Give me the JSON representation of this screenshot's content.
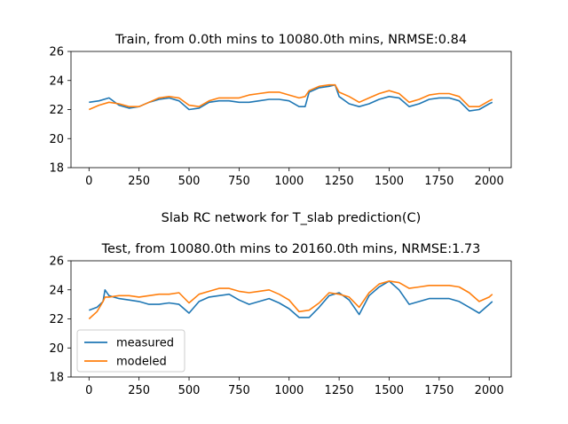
{
  "figure": {
    "suptitle": "Slab RC network for T_slab prediction(C)"
  },
  "colors": {
    "measured": "#1f77b4",
    "modeled": "#ff7f0e",
    "axes": "#000000",
    "background": "#ffffff"
  },
  "chart_data": [
    {
      "type": "line",
      "title": "Train, from 0.0th mins to 10080.0th mins, NRMSE:0.84",
      "xlabel": "",
      "ylabel": "",
      "xlim": [
        -90,
        2110
      ],
      "ylim": [
        18,
        26
      ],
      "xticks": [
        0,
        250,
        500,
        750,
        1000,
        1250,
        1500,
        1750,
        2000
      ],
      "yticks": [
        18,
        20,
        22,
        24,
        26
      ],
      "grid": false,
      "legend": null,
      "series": [
        {
          "name": "measured",
          "x": [
            0,
            50,
            100,
            150,
            200,
            250,
            300,
            350,
            400,
            450,
            500,
            550,
            600,
            650,
            700,
            750,
            800,
            850,
            900,
            950,
            1000,
            1050,
            1080,
            1100,
            1150,
            1200,
            1230,
            1250,
            1300,
            1350,
            1400,
            1450,
            1500,
            1550,
            1600,
            1650,
            1700,
            1750,
            1800,
            1850,
            1900,
            1950,
            2000,
            2016
          ],
          "y": [
            22.5,
            22.6,
            22.8,
            22.3,
            22.1,
            22.2,
            22.5,
            22.7,
            22.8,
            22.6,
            22.0,
            22.1,
            22.5,
            22.6,
            22.6,
            22.5,
            22.5,
            22.6,
            22.7,
            22.7,
            22.6,
            22.2,
            22.2,
            23.2,
            23.5,
            23.6,
            23.7,
            22.9,
            22.4,
            22.2,
            22.4,
            22.7,
            22.9,
            22.8,
            22.2,
            22.4,
            22.7,
            22.8,
            22.8,
            22.6,
            21.9,
            22.0,
            22.4,
            22.5
          ]
        },
        {
          "name": "modeled",
          "x": [
            0,
            50,
            100,
            150,
            200,
            250,
            300,
            350,
            400,
            450,
            500,
            550,
            600,
            650,
            700,
            750,
            800,
            850,
            900,
            950,
            1000,
            1050,
            1080,
            1100,
            1150,
            1200,
            1230,
            1250,
            1300,
            1350,
            1400,
            1450,
            1500,
            1550,
            1600,
            1650,
            1700,
            1750,
            1800,
            1850,
            1900,
            1950,
            2000,
            2016
          ],
          "y": [
            22.0,
            22.3,
            22.5,
            22.4,
            22.2,
            22.2,
            22.5,
            22.8,
            22.9,
            22.8,
            22.3,
            22.2,
            22.6,
            22.8,
            22.8,
            22.8,
            23.0,
            23.1,
            23.2,
            23.2,
            23.0,
            22.8,
            22.9,
            23.3,
            23.6,
            23.7,
            23.7,
            23.2,
            22.9,
            22.5,
            22.8,
            23.1,
            23.3,
            23.1,
            22.5,
            22.7,
            23.0,
            23.1,
            23.1,
            22.9,
            22.2,
            22.2,
            22.6,
            22.7
          ]
        }
      ]
    },
    {
      "type": "line",
      "title": "Test, from 10080.0th mins to 20160.0th mins, NRMSE:1.73",
      "xlabel": "",
      "ylabel": "",
      "xlim": [
        -90,
        2110
      ],
      "ylim": [
        18,
        26
      ],
      "xticks": [
        0,
        250,
        500,
        750,
        1000,
        1250,
        1500,
        1750,
        2000
      ],
      "yticks": [
        18,
        20,
        22,
        24,
        26
      ],
      "grid": false,
      "legend": "lower left",
      "series": [
        {
          "name": "measured",
          "x": [
            0,
            40,
            70,
            80,
            100,
            150,
            200,
            250,
            300,
            350,
            400,
            450,
            500,
            550,
            600,
            650,
            700,
            750,
            800,
            850,
            900,
            950,
            1000,
            1050,
            1100,
            1150,
            1200,
            1250,
            1300,
            1350,
            1400,
            1450,
            1500,
            1550,
            1600,
            1650,
            1700,
            1750,
            1800,
            1850,
            1900,
            1950,
            2000,
            2016
          ],
          "y": [
            22.6,
            22.8,
            23.2,
            24.0,
            23.6,
            23.4,
            23.3,
            23.2,
            23.0,
            23.0,
            23.1,
            23.0,
            22.4,
            23.2,
            23.5,
            23.6,
            23.7,
            23.3,
            23.0,
            23.2,
            23.4,
            23.1,
            22.7,
            22.1,
            22.1,
            22.8,
            23.6,
            23.8,
            23.3,
            22.3,
            23.6,
            24.2,
            24.6,
            24.0,
            23.0,
            23.2,
            23.4,
            23.4,
            23.4,
            23.2,
            22.8,
            22.4,
            23.0,
            23.2
          ]
        },
        {
          "name": "modeled",
          "x": [
            0,
            40,
            70,
            80,
            100,
            150,
            200,
            250,
            300,
            350,
            400,
            450,
            500,
            550,
            600,
            650,
            700,
            750,
            800,
            850,
            900,
            950,
            1000,
            1050,
            1100,
            1150,
            1200,
            1250,
            1300,
            1350,
            1400,
            1450,
            1500,
            1550,
            1600,
            1650,
            1700,
            1750,
            1800,
            1850,
            1900,
            1950,
            2000,
            2016
          ],
          "y": [
            22.0,
            22.5,
            23.2,
            23.5,
            23.5,
            23.6,
            23.6,
            23.5,
            23.6,
            23.7,
            23.7,
            23.8,
            23.1,
            23.7,
            23.9,
            24.1,
            24.1,
            23.9,
            23.8,
            23.9,
            24.0,
            23.7,
            23.3,
            22.5,
            22.6,
            23.1,
            23.8,
            23.7,
            23.5,
            22.8,
            23.8,
            24.4,
            24.6,
            24.5,
            24.1,
            24.2,
            24.3,
            24.3,
            24.3,
            24.2,
            23.8,
            23.2,
            23.5,
            23.7
          ]
        }
      ]
    }
  ]
}
